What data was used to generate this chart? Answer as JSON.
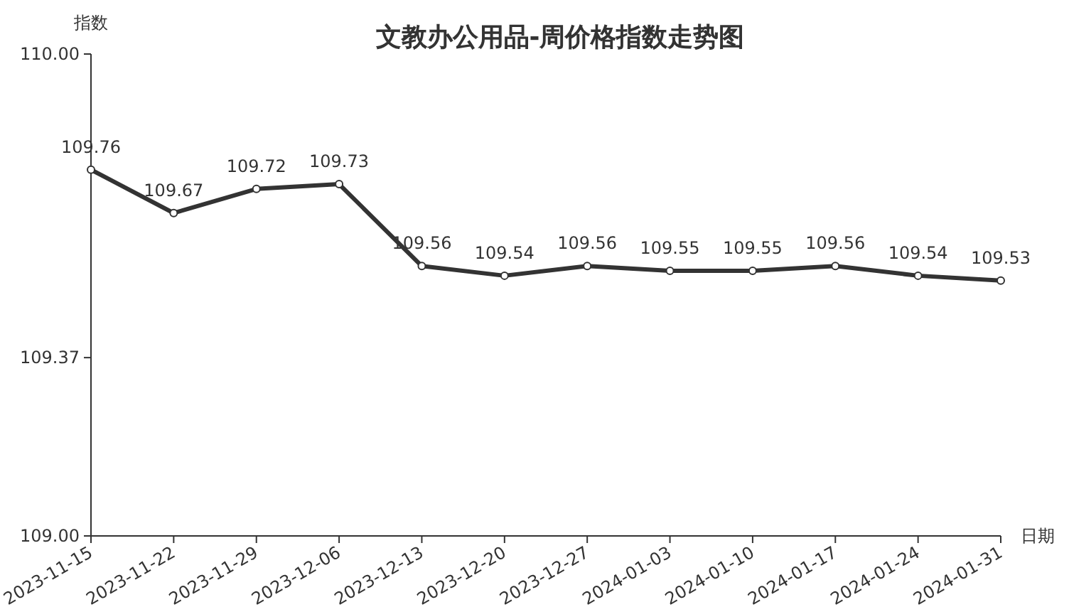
{
  "chart_data": {
    "type": "line",
    "title": "文教办公用品-周价格指数走势图",
    "xlabel": "日期",
    "ylabel": "指数",
    "categories": [
      "2023-11-15",
      "2023-11-22",
      "2023-11-29",
      "2023-12-06",
      "2023-12-13",
      "2023-12-20",
      "2023-12-27",
      "2024-01-03",
      "2024-01-10",
      "2024-01-17",
      "2024-01-24",
      "2024-01-31"
    ],
    "values": [
      109.76,
      109.67,
      109.72,
      109.73,
      109.56,
      109.54,
      109.56,
      109.55,
      109.55,
      109.56,
      109.54,
      109.53
    ],
    "color": "#333333",
    "marker": "circle",
    "data_labels": true,
    "ylim": [
      109,
      110
    ],
    "yticks": [
      {
        "value": 109,
        "label": "109.00"
      },
      109.37,
      {
        "value": 110,
        "label": "110.00"
      }
    ]
  }
}
